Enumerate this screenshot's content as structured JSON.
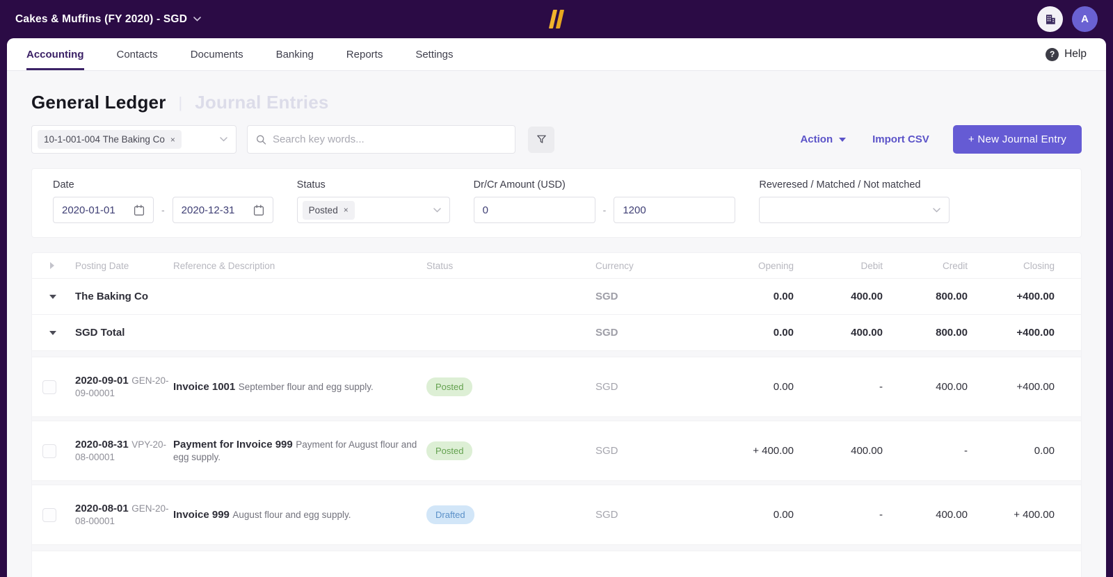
{
  "topbar": {
    "company_selector": "Cakes & Muffins (FY 2020) - SGD",
    "avatar_initial": "A"
  },
  "nav": {
    "tabs": [
      {
        "label": "Accounting",
        "active": true
      },
      {
        "label": "Contacts",
        "active": false
      },
      {
        "label": "Documents",
        "active": false
      },
      {
        "label": "Banking",
        "active": false
      },
      {
        "label": "Reports",
        "active": false
      },
      {
        "label": "Settings",
        "active": false
      }
    ],
    "help_label": "Help"
  },
  "page": {
    "title": "General Ledger",
    "secondary_tab": "Journal Entries"
  },
  "toolbar": {
    "account_tag": "10-1-001-004 The Baking Co",
    "search_placeholder": "Search key words...",
    "action_label": "Action",
    "import_csv_label": "Import CSV",
    "new_entry_label": "+ New Journal Entry"
  },
  "filters": {
    "date_label": "Date",
    "date_from": "2020-01-01",
    "date_to": "2020-12-31",
    "status_label": "Status",
    "status_tag": "Posted",
    "amount_label": "Dr/Cr Amount (USD)",
    "amount_min": "0",
    "amount_max": "1200",
    "matched_label": "Reveresed / Matched / Not matched"
  },
  "glyphs": {
    "help": "?",
    "remove": "×",
    "range_dash": "-",
    "title_divider": "|"
  },
  "table": {
    "headers": [
      "Posting Date",
      "Reference & Description",
      "Status",
      "Currency",
      "Opening",
      "Debit",
      "Credit",
      "Closing"
    ],
    "groups": [
      {
        "label": "The Baking Co",
        "currency": "SGD",
        "opening": "0.00",
        "debit": "400.00",
        "credit": "800.00",
        "closing": "+400.00"
      },
      {
        "label": "SGD Total",
        "currency": "SGD",
        "opening": "0.00",
        "debit": "400.00",
        "credit": "800.00",
        "closing": "+400.00"
      }
    ],
    "rows": [
      {
        "date": "2020-09-01",
        "ref": "GEN-20-09-00001",
        "title": "Invoice 1001",
        "desc": "September flour and egg supply.",
        "status": "Posted",
        "status_type": "posted",
        "currency": "SGD",
        "opening": "0.00",
        "debit": "-",
        "credit": "400.00",
        "closing": "+400.00"
      },
      {
        "date": "2020-08-31",
        "ref": "VPY-20-08-00001",
        "title": "Payment for Invoice 999",
        "desc": "Payment for August flour and egg supply.",
        "status": "Posted",
        "status_type": "posted",
        "currency": "SGD",
        "opening": "+ 400.00",
        "debit": "400.00",
        "credit": "-",
        "closing": "0.00"
      },
      {
        "date": "2020-08-01",
        "ref": "GEN-20-08-00001",
        "title": "Invoice 999",
        "desc": "August flour and egg supply.",
        "status": "Drafted",
        "status_type": "drafted",
        "currency": "SGD",
        "opening": "0.00",
        "debit": "-",
        "credit": "400.00",
        "closing": "+ 400.00"
      }
    ]
  },
  "colors": {
    "topbar_bg": "#2b0b45",
    "accent_purple": "#5b53c8",
    "button_purple": "#655bd4",
    "logo_gold": "#f2b42d",
    "posted_bg": "#ddefd5",
    "posted_text": "#63a14e",
    "drafted_bg": "#d2e6f8",
    "drafted_text": "#5a90c8"
  }
}
